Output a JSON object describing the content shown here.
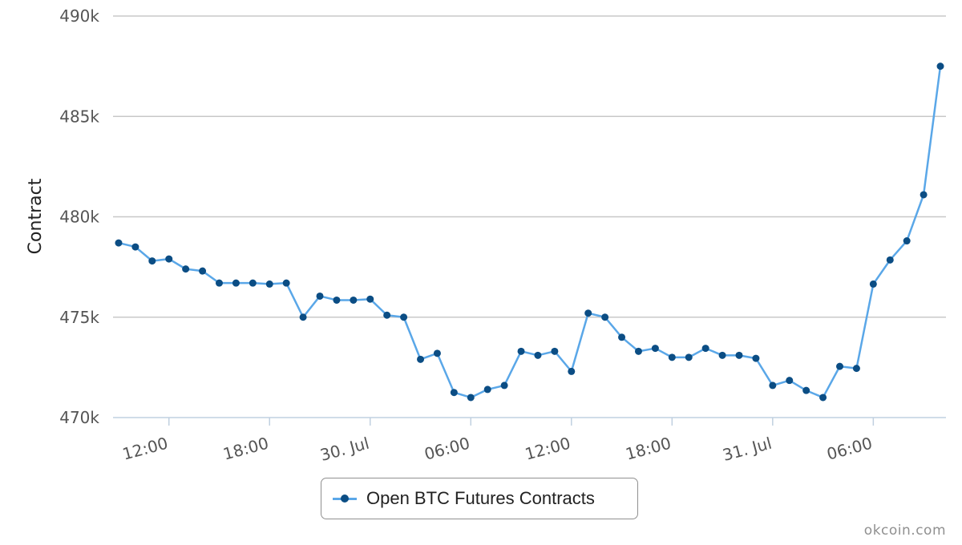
{
  "colors": {
    "line": "#5aa7e8",
    "marker": "#0b4d84",
    "grid": "#c8c8c8"
  },
  "chart_data": {
    "type": "line",
    "title": "",
    "xlabel": "",
    "ylabel": "Contract",
    "ylim": [
      470000,
      490000
    ],
    "yticks": [
      {
        "value": 470000,
        "label": "470k"
      },
      {
        "value": 475000,
        "label": "475k"
      },
      {
        "value": 480000,
        "label": "480k"
      },
      {
        "value": 485000,
        "label": "485k"
      },
      {
        "value": 490000,
        "label": "490k"
      }
    ],
    "xlim": [
      "2015-07-29 08:40",
      "2015-07-31 10:20"
    ],
    "xticks": [
      {
        "value": "2015-07-29 12:00",
        "label": "12:00"
      },
      {
        "value": "2015-07-29 18:00",
        "label": "18:00"
      },
      {
        "value": "2015-07-30 00:00",
        "label": "30. Jul"
      },
      {
        "value": "2015-07-30 06:00",
        "label": "06:00"
      },
      {
        "value": "2015-07-30 12:00",
        "label": "12:00"
      },
      {
        "value": "2015-07-30 18:00",
        "label": "18:00"
      },
      {
        "value": "2015-07-31 00:00",
        "label": "31. Jul"
      },
      {
        "value": "2015-07-31 06:00",
        "label": "06:00"
      }
    ],
    "grid": true,
    "legend": "bottom-center",
    "series": [
      {
        "name": "Open BTC Futures Contracts",
        "x": [
          "2015-07-29 09:00",
          "2015-07-29 10:00",
          "2015-07-29 11:00",
          "2015-07-29 12:00",
          "2015-07-29 13:00",
          "2015-07-29 14:00",
          "2015-07-29 15:00",
          "2015-07-29 16:00",
          "2015-07-29 17:00",
          "2015-07-29 18:00",
          "2015-07-29 19:00",
          "2015-07-29 20:00",
          "2015-07-29 21:00",
          "2015-07-29 22:00",
          "2015-07-29 23:00",
          "2015-07-30 00:00",
          "2015-07-30 01:00",
          "2015-07-30 02:00",
          "2015-07-30 03:00",
          "2015-07-30 04:00",
          "2015-07-30 05:00",
          "2015-07-30 06:00",
          "2015-07-30 07:00",
          "2015-07-30 08:00",
          "2015-07-30 09:00",
          "2015-07-30 10:00",
          "2015-07-30 11:00",
          "2015-07-30 12:00",
          "2015-07-30 13:00",
          "2015-07-30 14:00",
          "2015-07-30 15:00",
          "2015-07-30 16:00",
          "2015-07-30 17:00",
          "2015-07-30 18:00",
          "2015-07-30 19:00",
          "2015-07-30 20:00",
          "2015-07-30 21:00",
          "2015-07-30 22:00",
          "2015-07-30 23:00",
          "2015-07-31 00:00",
          "2015-07-31 01:00",
          "2015-07-31 02:00",
          "2015-07-31 03:00",
          "2015-07-31 04:00",
          "2015-07-31 05:00",
          "2015-07-31 06:00",
          "2015-07-31 07:00",
          "2015-07-31 08:00",
          "2015-07-31 09:00",
          "2015-07-31 10:00"
        ],
        "values": [
          478700,
          478500,
          477800,
          477900,
          477400,
          477300,
          476700,
          476700,
          476700,
          476650,
          476700,
          475000,
          476050,
          475850,
          475850,
          475900,
          475100,
          475000,
          472900,
          473200,
          471250,
          471000,
          471400,
          471600,
          473300,
          473100,
          473300,
          472300,
          475200,
          475000,
          474000,
          473300,
          473450,
          473000,
          473000,
          473450,
          473100,
          473100,
          472950,
          471600,
          471850,
          471350,
          471000,
          472550,
          472450,
          476650,
          477850,
          478800,
          481100,
          487500
        ]
      }
    ]
  },
  "legend": {
    "label": "Open BTC Futures Contracts"
  },
  "credits": {
    "text": "okcoin.com"
  }
}
